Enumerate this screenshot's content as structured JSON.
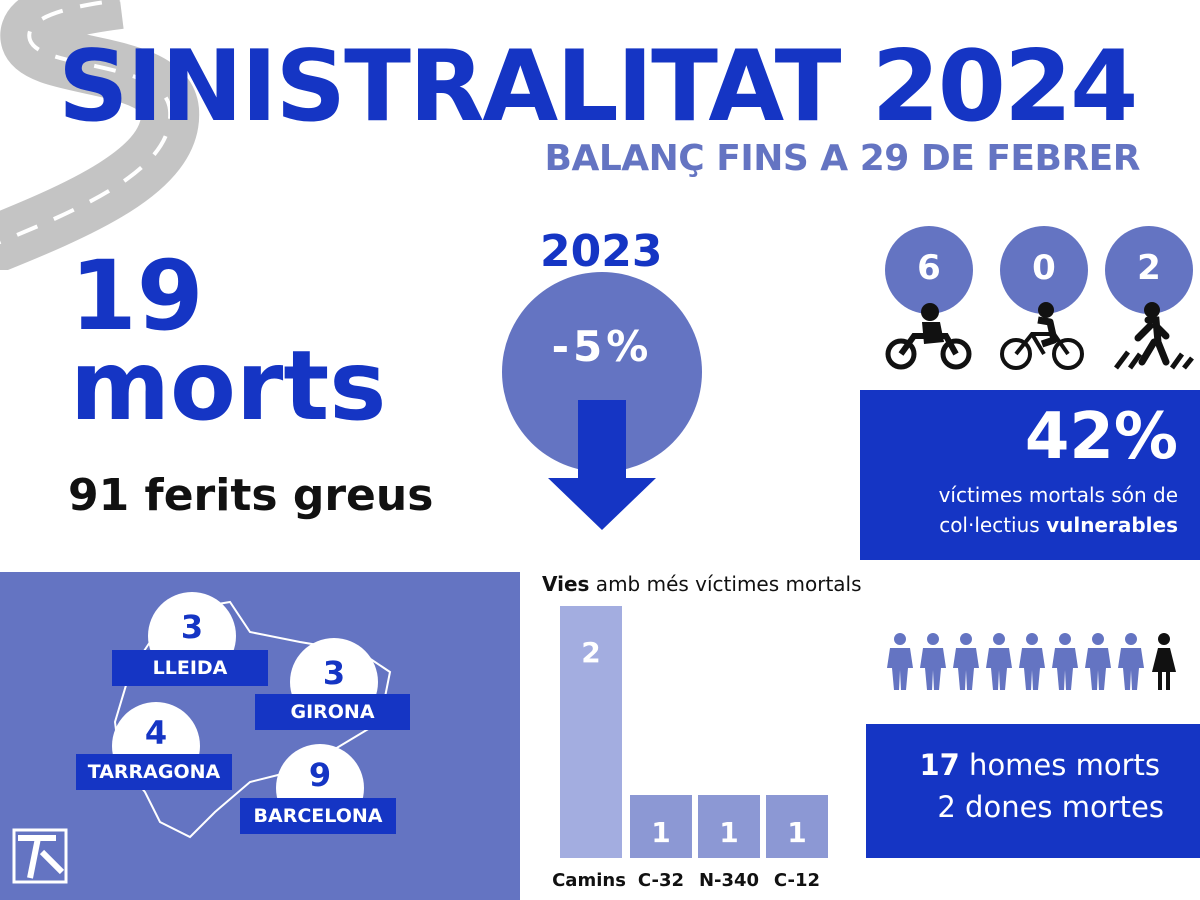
{
  "header": {
    "title": "SINISTRALITAT 2024",
    "subtitle": "BALANÇ FINS A 29 DE FEBRER"
  },
  "totals": {
    "deaths_value": "19",
    "deaths_label": "morts",
    "injured": "91 ferits greus"
  },
  "comparison": {
    "year": "2023",
    "change": "-5%"
  },
  "vulnerable": {
    "groups": [
      {
        "icon": "motorcycle-icon",
        "value": "6"
      },
      {
        "icon": "bicycle-icon",
        "value": "0"
      },
      {
        "icon": "pedestrian-icon",
        "value": "2"
      }
    ],
    "percent": "42%",
    "text_line1": "víctimes mortals són de",
    "text_line2_prefix": "col·lectius ",
    "text_line2_bold": "vulnerables"
  },
  "provinces": [
    {
      "name": "LLEIDA",
      "value": "3"
    },
    {
      "name": "GIRONA",
      "value": "3"
    },
    {
      "name": "TARRAGONA",
      "value": "4"
    },
    {
      "name": "BARCELONA",
      "value": "9"
    }
  ],
  "chart_data": {
    "type": "bar",
    "title_bold": "Vies",
    "title_rest": " amb més víctimes mortals",
    "categories": [
      "Camins",
      "C-32",
      "N-340",
      "C-12"
    ],
    "values": [
      2,
      1,
      1,
      1
    ],
    "labels": [
      "2",
      "1",
      "1",
      "1"
    ],
    "colors": {
      "highlight": "#a3ade0",
      "bar": "#8c98d4",
      "text": "#ffffff"
    }
  },
  "gender": {
    "men_count": "17",
    "men_label": " homes morts",
    "women_line": "2 dones mortes",
    "icon_man": "man-icon",
    "icon_woman": "woman-icon"
  },
  "colors": {
    "primary": "#1535c4",
    "secondary": "#6474c2"
  }
}
